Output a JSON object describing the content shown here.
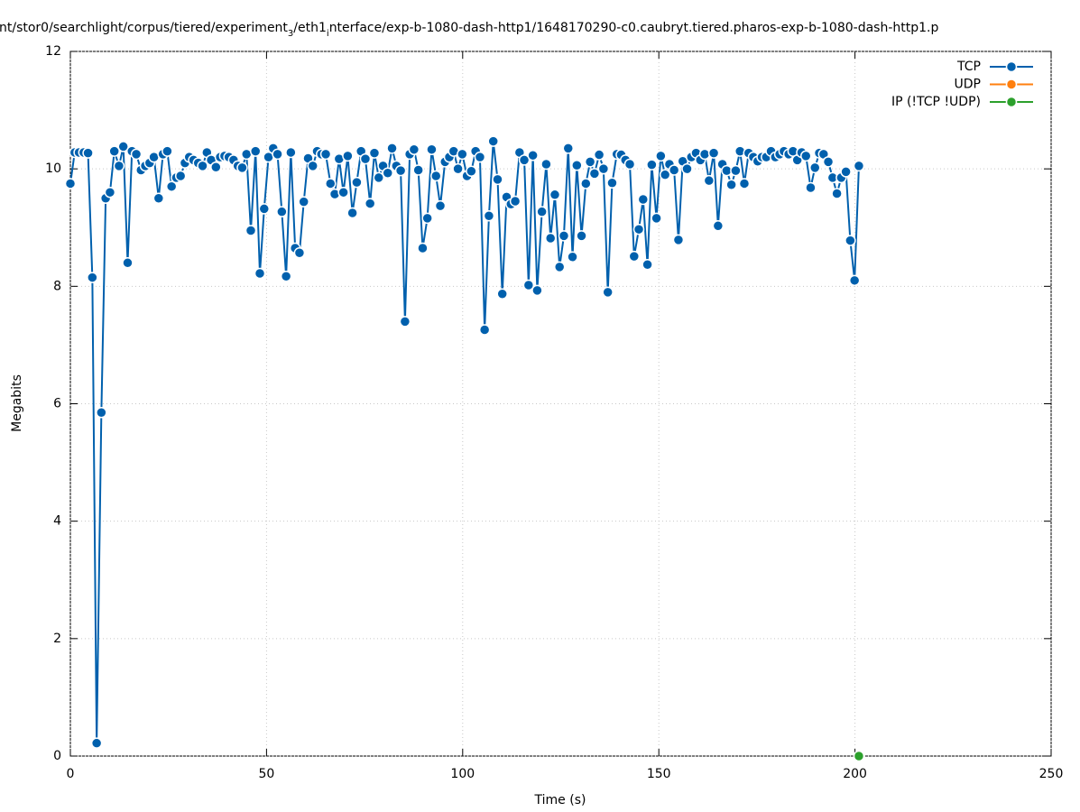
{
  "chart_data": {
    "type": "line",
    "title": [
      "nt/stor0/searchlight/corpus/tiered/experiment",
      "3",
      "/eth1",
      "i",
      "nterface/exp-b-1080-dash-http1/1648170290-c0.caubryt.tiered.pharos-exp-b-1080-dash-http1.p"
    ],
    "xlabel": "Time (s)",
    "ylabel": "Megabits",
    "xlim": [
      0,
      250
    ],
    "ylim": [
      0,
      12
    ],
    "xticks": [
      0,
      50,
      100,
      150,
      200,
      250
    ],
    "yticks": [
      0,
      2,
      4,
      6,
      8,
      10,
      12
    ],
    "grid": true,
    "legend": "top-right",
    "series": [
      {
        "name": "TCP",
        "color": "#0060ad",
        "x": [
          0,
          1.1,
          2.2,
          3.4,
          4.5,
          5.6,
          6.7,
          7.9,
          9.0,
          10.1,
          11.2,
          12.4,
          13.5,
          14.6,
          15.7,
          16.8,
          18.0,
          19.1,
          20.2,
          21.3,
          22.5,
          23.6,
          24.7,
          25.8,
          27.0,
          28.1,
          29.2,
          30.3,
          31.4,
          32.6,
          33.7,
          34.8,
          35.9,
          37.1,
          38.2,
          39.3,
          40.4,
          41.6,
          42.7,
          43.8,
          44.9,
          46.0,
          47.2,
          48.3,
          49.4,
          50.5,
          51.7,
          52.8,
          53.9,
          55.0,
          56.2,
          57.3,
          58.4,
          59.5,
          60.6,
          61.8,
          62.9,
          64.0,
          65.1,
          66.3,
          67.4,
          68.5,
          69.6,
          70.7,
          71.9,
          73.0,
          74.1,
          75.2,
          76.4,
          77.5,
          78.6,
          79.7,
          80.9,
          82.0,
          83.1,
          84.2,
          85.3,
          86.5,
          87.6,
          88.7,
          89.8,
          91.0,
          92.1,
          93.2,
          94.3,
          95.5,
          96.6,
          97.7,
          98.8,
          99.9,
          101.1,
          102.2,
          103.3,
          104.4,
          105.6,
          106.7,
          107.8,
          108.9,
          110.1,
          111.2,
          112.3,
          113.4,
          114.5,
          115.7,
          116.8,
          117.9,
          119.0,
          120.2,
          121.3,
          122.4,
          123.5,
          124.7,
          125.8,
          126.9,
          128.0,
          129.1,
          130.3,
          131.4,
          132.5,
          133.6,
          134.8,
          135.9,
          137.0,
          138.1,
          139.3,
          140.4,
          141.5,
          142.6,
          143.7,
          144.9,
          146.0,
          147.1,
          148.2,
          149.4,
          150.5,
          151.6,
          152.7,
          153.9,
          155.0,
          156.1,
          157.2,
          158.3,
          159.5,
          160.6,
          161.7,
          162.8,
          164.0,
          165.1,
          166.2,
          167.3,
          168.5,
          169.6,
          170.7,
          171.8,
          172.9,
          174.1,
          175.2,
          176.3,
          177.4,
          178.6,
          179.7,
          180.8,
          181.9,
          183.1,
          184.2,
          185.3,
          186.4,
          187.5,
          188.7,
          189.8,
          190.9,
          192.0,
          193.2,
          194.3,
          195.4,
          196.5,
          197.7,
          198.8,
          199.9,
          201.0
        ],
        "values": [
          9.75,
          10.28,
          10.28,
          10.28,
          10.27,
          8.15,
          0.22,
          5.85,
          9.5,
          9.6,
          10.3,
          10.05,
          10.38,
          8.4,
          10.3,
          10.25,
          9.98,
          10.05,
          10.1,
          10.2,
          9.5,
          10.25,
          10.3,
          9.7,
          9.85,
          9.88,
          10.1,
          10.2,
          10.15,
          10.1,
          10.05,
          10.28,
          10.15,
          10.03,
          10.2,
          10.22,
          10.2,
          10.15,
          10.05,
          10.02,
          10.25,
          8.95,
          10.3,
          8.22,
          9.32,
          10.2,
          10.35,
          10.25,
          9.27,
          8.17,
          10.28,
          8.65,
          8.57,
          9.44,
          10.18,
          10.05,
          10.3,
          10.25,
          10.25,
          9.75,
          9.57,
          10.17,
          9.6,
          10.22,
          9.25,
          9.77,
          10.3,
          10.17,
          9.41,
          10.27,
          9.85,
          10.05,
          9.93,
          10.35,
          10.05,
          9.97,
          7.4,
          10.25,
          10.33,
          9.98,
          8.65,
          9.16,
          10.33,
          9.88,
          9.37,
          10.12,
          10.2,
          10.3,
          10.0,
          10.25,
          9.88,
          9.96,
          10.3,
          10.2,
          7.26,
          9.2,
          10.47,
          9.82,
          7.87,
          9.52,
          9.4,
          9.45,
          10.28,
          10.15,
          8.02,
          10.23,
          7.93,
          9.27,
          10.08,
          8.82,
          9.56,
          8.33,
          8.86,
          10.35,
          8.5,
          10.06,
          8.86,
          9.75,
          10.12,
          9.92,
          10.24,
          10.0,
          7.9,
          9.76,
          10.25,
          10.24,
          10.15,
          10.08,
          8.51,
          8.97,
          9.48,
          8.37,
          10.07,
          9.16,
          10.22,
          9.9,
          10.08,
          9.98,
          8.79,
          10.13,
          10.0,
          10.2,
          10.27,
          10.15,
          10.25,
          9.8,
          10.27,
          9.03,
          10.08,
          9.97,
          9.73,
          9.97,
          10.3,
          9.75,
          10.27,
          10.2,
          10.13,
          10.2,
          10.2,
          10.3,
          10.2,
          10.25,
          10.3,
          10.25,
          10.3,
          10.15,
          10.28,
          10.22,
          9.68,
          10.02,
          10.27,
          10.25,
          10.12,
          9.85,
          9.58,
          9.85,
          9.95,
          8.78,
          8.1,
          10.05
        ]
      },
      {
        "name": "UDP",
        "color": "#ff7f0e",
        "x": [],
        "values": []
      },
      {
        "name": "IP (!TCP  !UDP)",
        "color": "#2ca02c",
        "x": [
          201
        ],
        "values": [
          0
        ]
      }
    ]
  }
}
